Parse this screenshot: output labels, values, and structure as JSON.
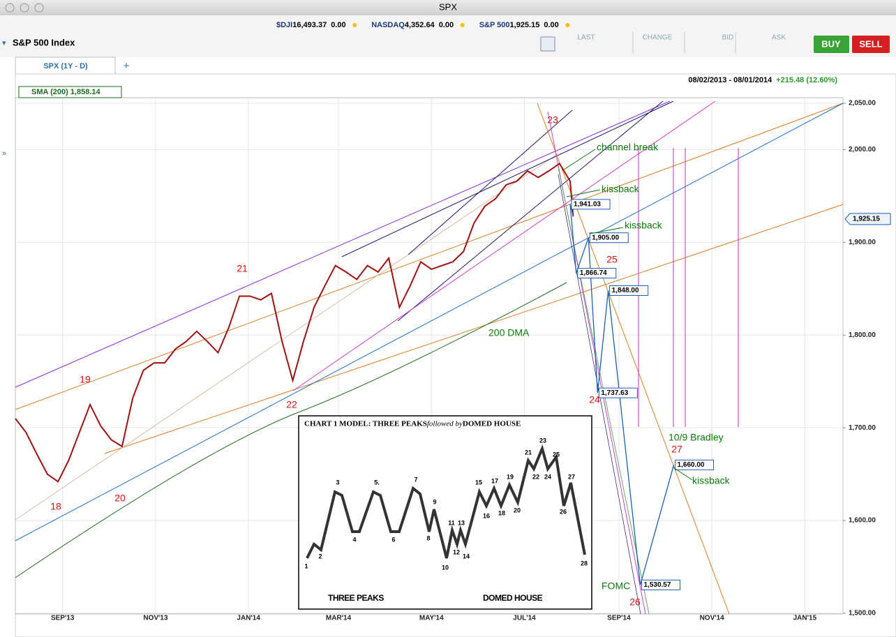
{
  "window": {
    "title": "SPX"
  },
  "tickers": [
    {
      "symbol": "$DJI",
      "price": "16,493.37",
      "change": "0.00"
    },
    {
      "symbol": "NASDAQ",
      "price": "4,352.64",
      "change": "0.00"
    },
    {
      "symbol": "S&P 500",
      "price": "1,925.15",
      "change": "0.00"
    }
  ],
  "instrument": "S&P 500 Index",
  "columns": [
    "LAST",
    "CHANGE",
    "BID",
    "ASK"
  ],
  "buttons": [
    "BUY",
    "SELL"
  ],
  "tab": "SPX (1Y - D)",
  "add_tab": "+",
  "chart_data": {
    "type": "line",
    "date_range": "08/02/2013 - 08/01/2014",
    "change": "+215.48 (12.60%)",
    "indicator": "SMA (200) 1,858.14",
    "last": {
      "value": 1925.15,
      "label": "1,925.15"
    },
    "xlim": [
      0,
      543
    ],
    "xticks": [
      {
        "value": 31,
        "label": "SEP'13"
      },
      {
        "value": 92,
        "label": "NOV'13"
      },
      {
        "value": 153,
        "label": "JAN'14"
      },
      {
        "value": 212,
        "label": "MAR'14"
      },
      {
        "value": 273,
        "label": "MAY'14"
      },
      {
        "value": 334,
        "label": "JUL'14"
      },
      {
        "value": 396,
        "label": "SEP'14"
      },
      {
        "value": 457,
        "label": "NOV'14"
      },
      {
        "value": 518,
        "label": "JAN'15"
      }
    ],
    "ylim": [
      1500,
      2050
    ],
    "yticks": [
      {
        "value": 1500,
        "label": "1,500.00"
      },
      {
        "value": 1600,
        "label": "1,600.00"
      },
      {
        "value": 1700,
        "label": "1,700.00"
      },
      {
        "value": 1800,
        "label": "1,800.00"
      },
      {
        "value": 1900,
        "label": "1,900.00"
      },
      {
        "value": 2000,
        "label": "2,000.00"
      },
      {
        "value": 2050,
        "label": "2,050.00"
      }
    ],
    "grid": true,
    "price": {
      "color": "#a01010",
      "x": [
        0,
        7,
        14,
        21,
        28,
        35,
        42,
        49,
        56,
        63,
        70,
        77,
        84,
        91,
        98,
        105,
        112,
        119,
        126,
        133,
        140,
        147,
        154,
        161,
        168,
        175,
        182,
        189,
        196,
        203,
        210,
        217,
        224,
        231,
        238,
        245,
        252,
        259,
        266,
        273,
        280,
        287,
        294,
        301,
        308,
        315,
        322,
        329,
        336,
        343,
        350,
        357,
        364,
        366
      ],
      "values": [
        1710,
        1695,
        1672,
        1650,
        1642,
        1665,
        1695,
        1725,
        1702,
        1687,
        1680,
        1732,
        1762,
        1770,
        1770,
        1785,
        1793,
        1804,
        1793,
        1781,
        1808,
        1842,
        1842,
        1838,
        1845,
        1793,
        1751,
        1793,
        1830,
        1853,
        1875,
        1868,
        1860,
        1875,
        1868,
        1883,
        1830,
        1853,
        1879,
        1871,
        1875,
        1879,
        1890,
        1921,
        1939,
        1947,
        1962,
        1966,
        1977,
        1970,
        1977,
        1985,
        1966,
        1928
      ]
    },
    "projection": {
      "color": "#1a5fb4",
      "x": [
        364,
        368,
        376,
        382,
        389,
        410,
        432
      ],
      "values": [
        1941.03,
        1866.74,
        1905,
        1737.63,
        1848,
        1530.57,
        1660
      ],
      "value_labels": [
        "1,941.03",
        "1,866.74",
        "1,905.00",
        "1,737.63",
        "1,848.00",
        "1,530.57",
        "1,660.00"
      ]
    },
    "wave_labels": [
      "18",
      "19",
      "20",
      "21",
      "22",
      "23",
      "24",
      "25",
      "26",
      "27"
    ],
    "notes": [
      "channel break",
      "kissback",
      "kissback",
      "kissback",
      "200 DMA",
      "10/9 Bradley",
      "FOMC"
    ]
  },
  "inset": {
    "title": [
      "CHART 1   MODEL: THREE PEAKS ",
      "followed by",
      " DOMED HOUSE"
    ],
    "labels": [
      "1",
      "2",
      "3",
      "4",
      "5.",
      "6",
      "7",
      "8",
      "9",
      "10",
      "11",
      "12",
      "13",
      "14",
      "15",
      "16",
      "17",
      "18",
      "19",
      "20",
      "21",
      "22",
      "23",
      "24",
      "25",
      "26",
      "27",
      "28"
    ],
    "captions": [
      "THREE PEAKS",
      "DOMED HOUSE"
    ]
  }
}
